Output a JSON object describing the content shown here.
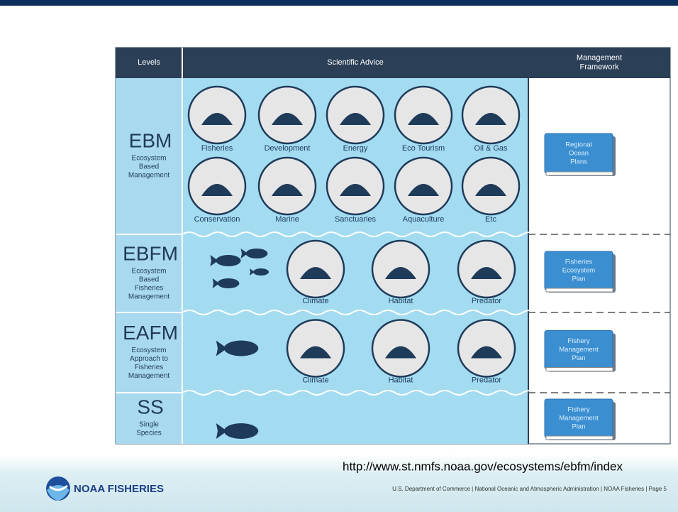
{
  "header": {
    "columns": [
      [
        "Levels"
      ],
      [
        "Scientific Advice"
      ],
      [
        "Management",
        "Framework"
      ]
    ]
  },
  "rows": [
    {
      "abbr": "EBM",
      "desc": [
        "Ecosystem",
        "Based",
        "Management"
      ],
      "icons": [
        "Fisheries",
        "Development",
        "Energy",
        "Eco Tourism",
        "Oil & Gas",
        "Conservation",
        "Marine",
        "Sanctuaries",
        "Aquaculture",
        "Etc"
      ],
      "book": [
        "Regional",
        "Ocean",
        "Plans"
      ]
    },
    {
      "abbr": "EBFM",
      "desc": [
        "Ecosystem",
        "Based",
        "Fisheries",
        "Management"
      ],
      "icons": [
        "Climate",
        "Habitat",
        "Predator"
      ],
      "book": [
        "Fisheries",
        "Ecosystem",
        "Plan"
      ]
    },
    {
      "abbr": "EAFM",
      "desc": [
        "Ecosystem",
        "Approach to",
        "Fisheries",
        "Management"
      ],
      "icons": [
        "Climate",
        "Habitat",
        "Predator"
      ],
      "book": [
        "Fishery",
        "Management",
        "Plan"
      ]
    },
    {
      "abbr": "SS",
      "desc": [
        "Single",
        "Species"
      ],
      "book": [
        "Fishery",
        "Management",
        "Plan"
      ]
    }
  ],
  "url": "http://www.st.nmfs.noaa.gov/ecosystems/ebfm/index",
  "footer": {
    "logo": "NOAA FISHERIES",
    "text": "U.S. Department of Commerce | National Oceanic and Atmospheric Administration | NOAA Fisheries | Page 5"
  }
}
